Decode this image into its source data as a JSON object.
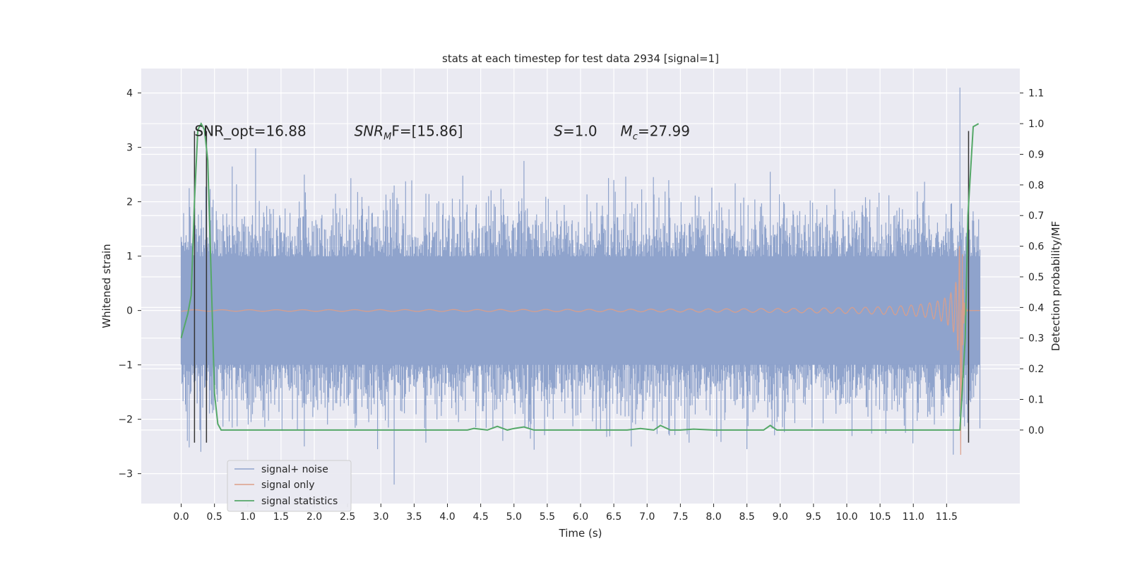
{
  "chart_data": {
    "type": "line",
    "title": "stats at each timestep for test data 2934 [signal=1]",
    "xlabel": "Time (s)",
    "ylabel": "Whitened strain",
    "y2label": "Detection probability/MF",
    "xlim": [
      -0.6,
      12.6
    ],
    "ylim": [
      -3.55,
      4.45
    ],
    "y2lim": [
      -0.24,
      1.18
    ],
    "xticks": [
      0.0,
      0.5,
      1.0,
      1.5,
      2.0,
      2.5,
      3.0,
      3.5,
      4.0,
      4.5,
      5.0,
      5.5,
      6.0,
      6.5,
      7.0,
      7.5,
      8.0,
      8.5,
      9.0,
      9.5,
      10.0,
      10.5,
      11.0,
      11.5
    ],
    "xtick_labels": [
      "0.0",
      "0.5",
      "1.0",
      "1.5",
      "2.0",
      "2.5",
      "3.0",
      "3.5",
      "4.0",
      "4.5",
      "5.0",
      "5.5",
      "6.0",
      "6.5",
      "7.0",
      "7.5",
      "8.0",
      "8.5",
      "9.0",
      "9.5",
      "10.0",
      "10.5",
      "11.0",
      "11.5"
    ],
    "yticks": [
      -3,
      -2,
      -1,
      0,
      1,
      2,
      3,
      4
    ],
    "ytick_labels": [
      "−3",
      "−2",
      "−1",
      "0",
      "1",
      "2",
      "3",
      "4"
    ],
    "y2ticks": [
      0.0,
      0.1,
      0.2,
      0.3,
      0.4,
      0.5,
      0.6,
      0.7,
      0.8,
      0.9,
      1.0,
      1.1
    ],
    "y2tick_labels": [
      "0.0",
      "0.1",
      "0.2",
      "0.3",
      "0.4",
      "0.5",
      "0.6",
      "0.7",
      "0.8",
      "0.9",
      "1.0",
      "1.1"
    ],
    "grid": true,
    "legend_position": "lower-left",
    "annotations": [
      {
        "label": "SNR_opt=16.88",
        "x": 0.2
      },
      {
        "label": "SNR",
        "sub": "M",
        "suffix": "F=[15.86]",
        "x": 2.6
      },
      {
        "label": "S",
        "suffix": "=1.0",
        "x": 5.6
      },
      {
        "label": "M",
        "sub": "c",
        "suffix": "=27.99",
        "x": 6.6
      }
    ],
    "annotation_y": 3.3,
    "series": [
      {
        "name": "signal+ noise",
        "color": "#8fa3cc",
        "axis": "left",
        "kind": "noise",
        "x_range": [
          0.0,
          12.0
        ],
        "amplitude_std": 0.55,
        "envelope": [
          -1.0,
          1.0
        ],
        "peak_values": [
          {
            "x": 0.12,
            "y": 2.25
          },
          {
            "x": 0.28,
            "y": -2.2
          },
          {
            "x": 1.05,
            "y": -2.05
          },
          {
            "x": 1.85,
            "y": 2.5
          },
          {
            "x": 1.85,
            "y": -2.5
          },
          {
            "x": 2.95,
            "y": -2.55
          },
          {
            "x": 3.2,
            "y": -3.2
          },
          {
            "x": 3.2,
            "y": 2.3
          },
          {
            "x": 5.15,
            "y": 2.75
          },
          {
            "x": 6.5,
            "y": 2.4
          },
          {
            "x": 8.5,
            "y": -2.55
          },
          {
            "x": 8.85,
            "y": 2.55
          },
          {
            "x": 11.6,
            "y": -2.65
          },
          {
            "x": 11.7,
            "y": 4.1
          }
        ]
      },
      {
        "name": "signal only",
        "color": "#dd9f88",
        "axis": "left",
        "kind": "chirp",
        "x_range": [
          0.0,
          12.0
        ],
        "merger_time": 11.72,
        "max_amplitude": 2.7
      },
      {
        "name": "signal statistics",
        "color": "#55a868",
        "axis": "right",
        "kind": "line",
        "x": [
          0.0,
          0.1,
          0.15,
          0.2,
          0.25,
          0.3,
          0.35,
          0.4,
          0.45,
          0.5,
          0.55,
          0.6,
          1.0,
          2.0,
          3.0,
          4.0,
          4.3,
          4.4,
          4.6,
          4.75,
          4.9,
          5.0,
          5.15,
          5.3,
          6.0,
          6.7,
          6.9,
          7.1,
          7.2,
          7.35,
          7.5,
          7.7,
          8.0,
          8.5,
          8.75,
          8.85,
          8.95,
          9.0,
          9.5,
          10.0,
          11.0,
          11.5,
          11.7,
          11.78,
          11.82,
          11.9,
          11.98
        ],
        "y": [
          0.3,
          0.38,
          0.44,
          0.75,
          0.98,
          1.0,
          0.98,
          0.88,
          0.5,
          0.12,
          0.02,
          0.0,
          0.0,
          0.0,
          0.0,
          0.0,
          0.0,
          0.005,
          0.0,
          0.012,
          0.0,
          0.005,
          0.01,
          0.0,
          0.0,
          0.0,
          0.005,
          0.0,
          0.015,
          0.0,
          0.0,
          0.003,
          0.0,
          0.0,
          0.0,
          0.015,
          0.0,
          0.0,
          0.0,
          0.0,
          0.0,
          0.0,
          0.0,
          0.3,
          0.7,
          0.99,
          1.0
        ]
      }
    ],
    "vertical_lines": {
      "color": "#333333",
      "x": [
        0.2,
        0.38,
        11.83
      ],
      "y_range": [
        -2.43,
        3.3
      ]
    }
  }
}
